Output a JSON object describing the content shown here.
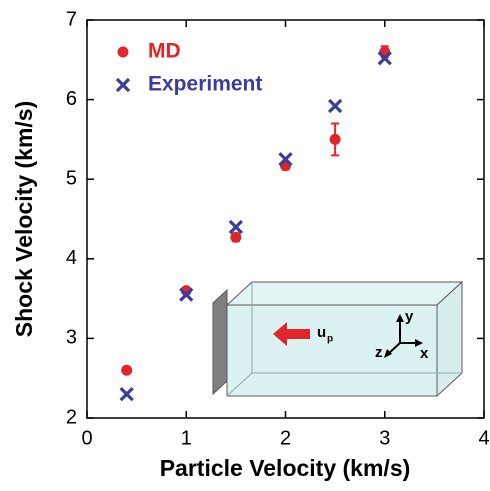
{
  "chart_data": {
    "type": "scatter",
    "xlabel": "Particle Velocity (km/s)",
    "ylabel": "Shock Velocity (km/s)",
    "xlim": [
      0,
      4
    ],
    "ylim": [
      2,
      7
    ],
    "xticks": [
      0,
      1,
      2,
      3,
      4
    ],
    "yticks": [
      2,
      3,
      4,
      5,
      6,
      7
    ],
    "legend": "upper left",
    "series": [
      {
        "name": "MD",
        "color": "#e0262a",
        "marker": "circle",
        "x": [
          0.4,
          1.0,
          1.5,
          2.0,
          2.5,
          3.0
        ],
        "values": [
          2.6,
          3.6,
          4.27,
          5.17,
          5.5,
          6.6
        ],
        "errors": [
          0.03,
          0.03,
          0.05,
          0.05,
          0.2,
          0.07
        ]
      },
      {
        "name": "Experiment",
        "color": "#3c3c9e",
        "marker": "x",
        "x": [
          0.4,
          1.0,
          1.5,
          2.0,
          2.5,
          3.0
        ],
        "values": [
          2.3,
          3.55,
          4.4,
          5.25,
          5.92,
          6.52
        ]
      }
    ],
    "inset": {
      "velocity_label": "u",
      "velocity_subscript": "p",
      "axis_x": "x",
      "axis_y": "y",
      "axis_z": "z"
    }
  }
}
